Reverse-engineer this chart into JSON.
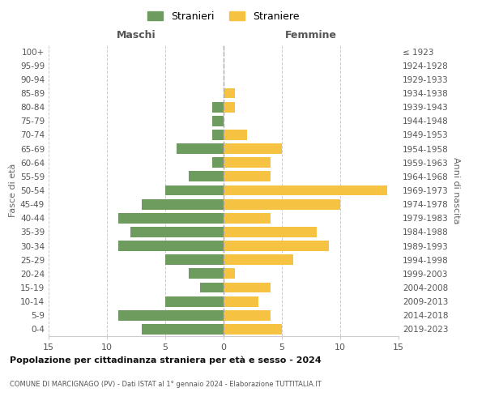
{
  "age_groups": [
    "0-4",
    "5-9",
    "10-14",
    "15-19",
    "20-24",
    "25-29",
    "30-34",
    "35-39",
    "40-44",
    "45-49",
    "50-54",
    "55-59",
    "60-64",
    "65-69",
    "70-74",
    "75-79",
    "80-84",
    "85-89",
    "90-94",
    "95-99",
    "100+"
  ],
  "birth_years": [
    "2019-2023",
    "2014-2018",
    "2009-2013",
    "2004-2008",
    "1999-2003",
    "1994-1998",
    "1989-1993",
    "1984-1988",
    "1979-1983",
    "1974-1978",
    "1969-1973",
    "1964-1968",
    "1959-1963",
    "1954-1958",
    "1949-1953",
    "1944-1948",
    "1939-1943",
    "1934-1938",
    "1929-1933",
    "1924-1928",
    "≤ 1923"
  ],
  "maschi": [
    7,
    9,
    5,
    2,
    3,
    5,
    9,
    8,
    9,
    7,
    5,
    3,
    1,
    4,
    1,
    1,
    1,
    0,
    0,
    0,
    0
  ],
  "femmine": [
    5,
    4,
    3,
    4,
    1,
    6,
    9,
    8,
    4,
    10,
    14,
    4,
    4,
    5,
    2,
    0,
    1,
    1,
    0,
    0,
    0
  ],
  "male_color": "#6e9b5e",
  "female_color": "#f5c242",
  "background_color": "#ffffff",
  "grid_color": "#cccccc",
  "title": "Popolazione per cittadinanza straniera per età e sesso - 2024",
  "subtitle": "COMUNE DI MARCIGNAGO (PV) - Dati ISTAT al 1° gennaio 2024 - Elaborazione TUTTITALIA.IT",
  "xlabel_left": "Maschi",
  "xlabel_right": "Femmine",
  "ylabel_left": "Fasce di età",
  "ylabel_right": "Anni di nascita",
  "legend_male": "Stranieri",
  "legend_female": "Straniere",
  "xlim": 15,
  "bar_height": 0.75
}
